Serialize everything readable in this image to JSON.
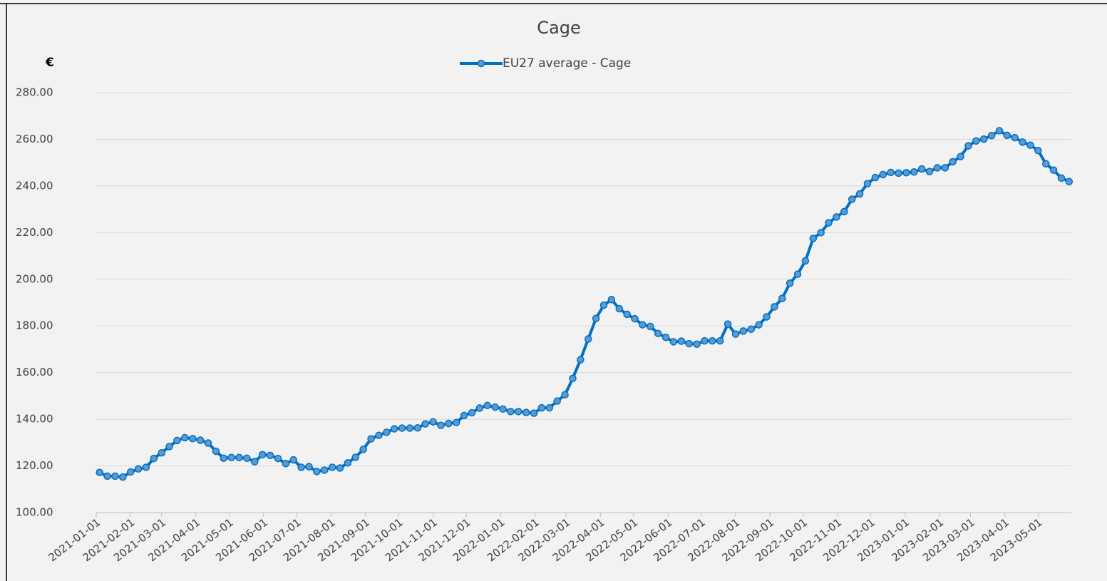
{
  "chart_data": {
    "type": "line",
    "title": "Cage",
    "y_label": "€",
    "x": [
      "2021-01-04",
      "2021-01-11",
      "2021-01-18",
      "2021-01-25",
      "2021-02-01",
      "2021-02-08",
      "2021-02-15",
      "2021-02-22",
      "2021-03-01",
      "2021-03-08",
      "2021-03-15",
      "2021-03-22",
      "2021-03-29",
      "2021-04-05",
      "2021-04-12",
      "2021-04-19",
      "2021-04-26",
      "2021-05-03",
      "2021-05-10",
      "2021-05-17",
      "2021-05-24",
      "2021-05-31",
      "2021-06-07",
      "2021-06-14",
      "2021-06-21",
      "2021-06-28",
      "2021-07-05",
      "2021-07-12",
      "2021-07-19",
      "2021-07-26",
      "2021-08-02",
      "2021-08-09",
      "2021-08-16",
      "2021-08-23",
      "2021-08-30",
      "2021-09-06",
      "2021-09-13",
      "2021-09-20",
      "2021-09-27",
      "2021-10-04",
      "2021-10-11",
      "2021-10-18",
      "2021-10-25",
      "2021-11-01",
      "2021-11-08",
      "2021-11-15",
      "2021-11-22",
      "2021-11-29",
      "2021-12-06",
      "2021-12-13",
      "2021-12-20",
      "2021-12-27",
      "2022-01-03",
      "2022-01-10",
      "2022-01-17",
      "2022-01-24",
      "2022-01-31",
      "2022-02-07",
      "2022-02-14",
      "2022-02-21",
      "2022-02-28",
      "2022-03-07",
      "2022-03-14",
      "2022-03-21",
      "2022-03-28",
      "2022-04-04",
      "2022-04-11",
      "2022-04-18",
      "2022-04-25",
      "2022-05-02",
      "2022-05-09",
      "2022-05-16",
      "2022-05-23",
      "2022-05-30",
      "2022-06-06",
      "2022-06-13",
      "2022-06-20",
      "2022-06-27",
      "2022-07-04",
      "2022-07-11",
      "2022-07-18",
      "2022-07-25",
      "2022-08-01",
      "2022-08-08",
      "2022-08-15",
      "2022-08-22",
      "2022-08-29",
      "2022-09-05",
      "2022-09-12",
      "2022-09-19",
      "2022-09-26",
      "2022-10-03",
      "2022-10-10",
      "2022-10-17",
      "2022-10-24",
      "2022-10-31",
      "2022-11-07",
      "2022-11-14",
      "2022-11-21",
      "2022-11-28",
      "2022-12-05",
      "2022-12-12",
      "2022-12-19",
      "2022-12-26",
      "2023-01-02",
      "2023-01-09",
      "2023-01-16",
      "2023-01-23",
      "2023-01-30",
      "2023-02-06",
      "2023-02-13",
      "2023-02-20",
      "2023-02-27",
      "2023-03-06",
      "2023-03-13",
      "2023-03-20",
      "2023-03-27",
      "2023-04-03",
      "2023-04-10",
      "2023-04-17",
      "2023-04-24",
      "2023-05-01",
      "2023-05-08",
      "2023-05-15",
      "2023-05-22",
      "2023-05-29"
    ],
    "series": [
      {
        "name": "EU27 average - Cage",
        "color": "#0070c0",
        "values": [
          117.2,
          115.6,
          115.6,
          115.2,
          117.4,
          118.7,
          119.4,
          123.2,
          125.6,
          128.3,
          130.9,
          132.1,
          131.7,
          131.0,
          129.8,
          126.3,
          123.3,
          123.6,
          123.6,
          123.3,
          121.8,
          124.8,
          124.5,
          123.2,
          121.0,
          122.6,
          119.4,
          119.7,
          117.6,
          118.2,
          119.4,
          119.1,
          121.3,
          123.7,
          127.1,
          131.6,
          133.1,
          134.4,
          135.9,
          136.2,
          136.2,
          136.3,
          138.0,
          138.9,
          137.4,
          138.2,
          138.6,
          141.6,
          142.8,
          144.8,
          145.9,
          145.2,
          144.4,
          143.3,
          143.3,
          142.9,
          142.6,
          144.9,
          144.9,
          147.8,
          150.5,
          157.5,
          165.5,
          174.4,
          183.2,
          188.9,
          191.3,
          187.4,
          185.0,
          183.1,
          180.5,
          179.8,
          176.8,
          175.1,
          173.2,
          173.5,
          172.4,
          172.2,
          173.6,
          173.6,
          173.6,
          180.8,
          176.5,
          177.8,
          178.6,
          180.5,
          183.9,
          188.2,
          191.8,
          198.3,
          202.2,
          207.9,
          217.5,
          220.0,
          224.2,
          226.7,
          229.0,
          234.3,
          236.6,
          241.0,
          243.6,
          244.9,
          245.8,
          245.5,
          245.7,
          246.0,
          247.3,
          246.2,
          247.8,
          247.8,
          250.4,
          252.6,
          257.2,
          259.3,
          260.1,
          261.6,
          263.7,
          261.7,
          260.7,
          258.8,
          257.5,
          255.2,
          249.5,
          246.8,
          243.4,
          241.9
        ]
      }
    ],
    "xlim": [
      "2021-01-01",
      "2023-05-31"
    ],
    "xticks": [
      "2021-01-01",
      "2021-02-01",
      "2021-03-01",
      "2021-04-01",
      "2021-05-01",
      "2021-06-01",
      "2021-07-01",
      "2021-08-01",
      "2021-09-01",
      "2021-10-01",
      "2021-11-01",
      "2021-12-01",
      "2022-01-01",
      "2022-02-01",
      "2022-03-01",
      "2022-04-01",
      "2022-05-01",
      "2022-06-01",
      "2022-07-01",
      "2022-08-01",
      "2022-09-01",
      "2022-10-01",
      "2022-11-01",
      "2022-12-01",
      "2023-01-01",
      "2023-02-01",
      "2023-03-01",
      "2023-04-01",
      "2023-05-01"
    ],
    "ylim": [
      100,
      280
    ],
    "yticks": [
      {
        "value": 100,
        "label": "100.00"
      },
      {
        "value": 120,
        "label": "120.00"
      },
      {
        "value": 140,
        "label": "140.00"
      },
      {
        "value": 160,
        "label": "160.00"
      },
      {
        "value": 180,
        "label": "180.00"
      },
      {
        "value": 200,
        "label": "200.00"
      },
      {
        "value": 220,
        "label": "220.00"
      },
      {
        "value": 240,
        "label": "240.00"
      },
      {
        "value": 260,
        "label": "260.00"
      },
      {
        "value": 280,
        "label": "280.00"
      }
    ],
    "grid": true,
    "legend": "top"
  }
}
